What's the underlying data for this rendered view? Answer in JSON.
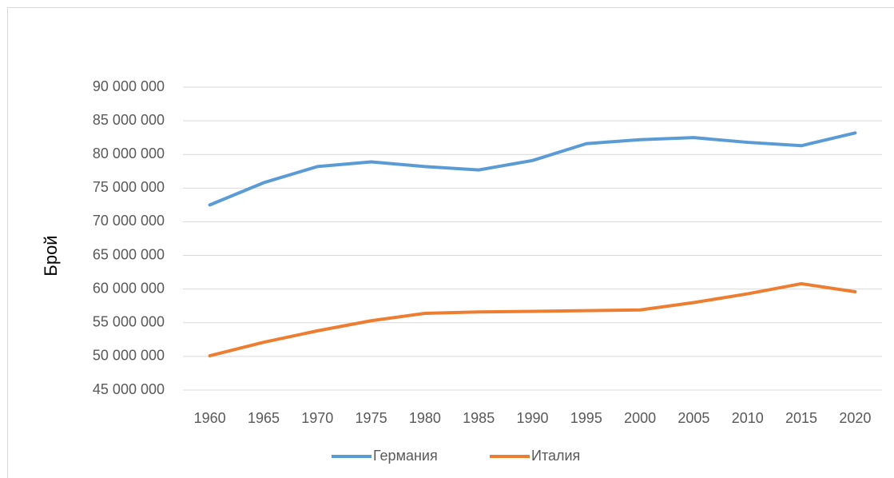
{
  "chart_data": {
    "type": "line",
    "y_label": "Брой",
    "categories": [
      "1960",
      "1965",
      "1970",
      "1975",
      "1980",
      "1985",
      "1990",
      "1995",
      "2000",
      "2005",
      "2010",
      "2015",
      "2020"
    ],
    "series": [
      {
        "name": "Германия",
        "color": "#5b9bd5",
        "values": [
          72500000,
          75800000,
          78200000,
          78900000,
          78200000,
          77700000,
          79100000,
          81600000,
          82200000,
          82500000,
          81800000,
          81300000,
          83200000
        ]
      },
      {
        "name": "Италия",
        "color": "#ed7d31",
        "values": [
          50100000,
          52100000,
          53800000,
          55300000,
          56400000,
          56600000,
          56700000,
          56800000,
          56900000,
          58000000,
          59300000,
          60800000,
          59600000
        ]
      }
    ],
    "ylim": [
      45000000,
      90000000
    ],
    "yticks": [
      {
        "value": 45000000,
        "label": "45 000 000"
      },
      {
        "value": 50000000,
        "label": "50 000 000"
      },
      {
        "value": 55000000,
        "label": "55 000 000"
      },
      {
        "value": 60000000,
        "label": "60 000 000"
      },
      {
        "value": 65000000,
        "label": "65 000 000"
      },
      {
        "value": 70000000,
        "label": "70 000 000"
      },
      {
        "value": 75000000,
        "label": "75 000 000"
      },
      {
        "value": 80000000,
        "label": "80 000 000"
      },
      {
        "value": 85000000,
        "label": "85 000 000"
      },
      {
        "value": 90000000,
        "label": "90 000 000"
      }
    ],
    "grid": true,
    "legend": "bottom"
  }
}
